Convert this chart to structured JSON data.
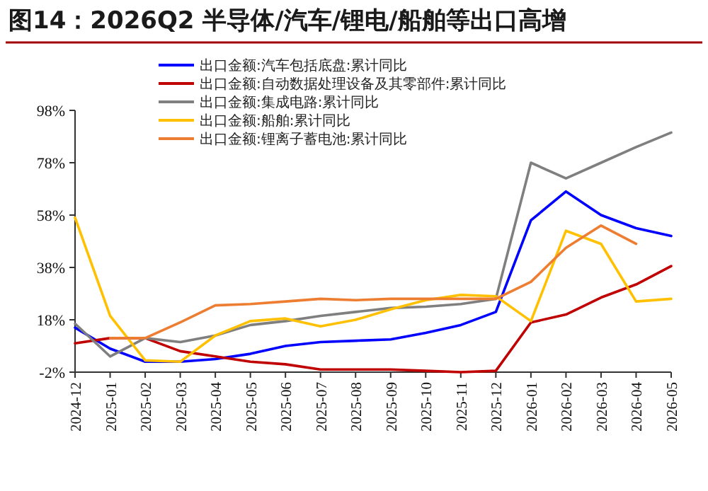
{
  "chart_data": {
    "type": "line",
    "title": "图14：2026Q2 半导体/汽车/锂电/船舶等出口高增",
    "categories": [
      "2024-12",
      "2025-01",
      "2025-02",
      "2025-03",
      "2025-04",
      "2025-05",
      "2025-06",
      "2025-07",
      "2025-08",
      "2025-09",
      "2025-10",
      "2025-11",
      "2025-12",
      "2026-01",
      "2026-02",
      "2026-03",
      "2026-04",
      "2026-05"
    ],
    "series": [
      {
        "name": "出口金额:汽车包括底盘:累计同比",
        "color": "#0000ff",
        "values": [
          15,
          7,
          2,
          2,
          3,
          5,
          8,
          9.5,
          10,
          10.5,
          13,
          16,
          21,
          56,
          67,
          58,
          53,
          50
        ]
      },
      {
        "name": "出口金额:自动数据处理设备及其零部件:累计同比",
        "color": "#c00000",
        "values": [
          9,
          11,
          11,
          6,
          4,
          2,
          1,
          -1,
          -1,
          -1,
          -1.5,
          -2,
          -1.5,
          17,
          20,
          26.5,
          31.5,
          38.5
        ]
      },
      {
        "name": "出口金额:集成电路:累计同比",
        "color": "#7f7f7f",
        "values": [
          16.5,
          4,
          11,
          9.5,
          12,
          16,
          17.5,
          19.5,
          21,
          22.5,
          23,
          24,
          26,
          78,
          72,
          78,
          84,
          89.5
        ]
      },
      {
        "name": "出口金额:船舶:累计同比",
        "color": "#ffc000",
        "values": [
          57,
          19.5,
          2.5,
          2,
          12,
          17.5,
          18.5,
          15.5,
          18,
          22,
          25.5,
          27.5,
          27,
          17.5,
          52,
          47,
          25,
          26
        ]
      },
      {
        "name": "出口金额:锂离子蓄电池:累计同比",
        "color": "#ed7d31",
        "values": [
          null,
          11,
          11,
          17,
          23.5,
          24,
          25,
          26,
          25.5,
          26,
          26,
          26,
          26,
          32.5,
          45.5,
          54,
          47,
          null
        ]
      }
    ],
    "ylim": [
      -2,
      98
    ],
    "yticks": [
      {
        "value": -2,
        "label": "-2%"
      },
      {
        "value": 18,
        "label": "18%"
      },
      {
        "value": 38,
        "label": "38%"
      },
      {
        "value": 58,
        "label": "58%"
      },
      {
        "value": 78,
        "label": "78%"
      },
      {
        "value": 98,
        "label": "98%"
      }
    ],
    "grid": false,
    "legend": "top",
    "marker": "none",
    "line_style": "solid"
  }
}
